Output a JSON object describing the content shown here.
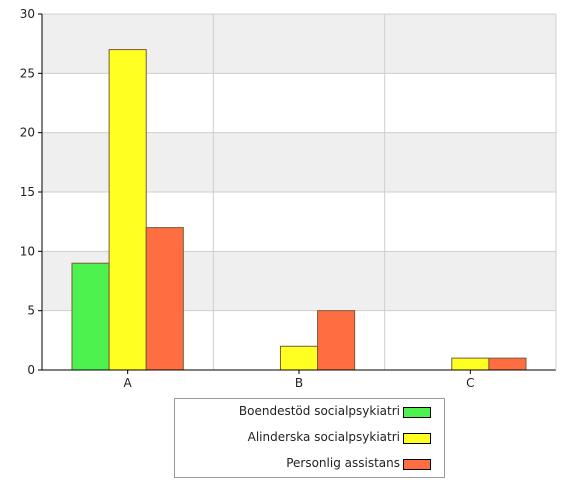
{
  "chart_data": {
    "type": "bar",
    "categories": [
      "A",
      "B",
      "C"
    ],
    "series": [
      {
        "name": "Boendestöd socialpsykiatri",
        "values": [
          9,
          0,
          0
        ],
        "color": "#4ef24e"
      },
      {
        "name": "Alinderska socialpsykiatri",
        "values": [
          27,
          2,
          1
        ],
        "color": "#ffff22"
      },
      {
        "name": "Personlig assistans",
        "values": [
          12,
          5,
          1
        ],
        "color": "#ff6e40"
      }
    ],
    "yticks": [
      0,
      5,
      10,
      15,
      20,
      25,
      30
    ],
    "ylim": [
      0,
      30
    ],
    "title": "",
    "xlabel": "",
    "ylabel": "",
    "grid": true,
    "legend_position": "bottom-center"
  }
}
